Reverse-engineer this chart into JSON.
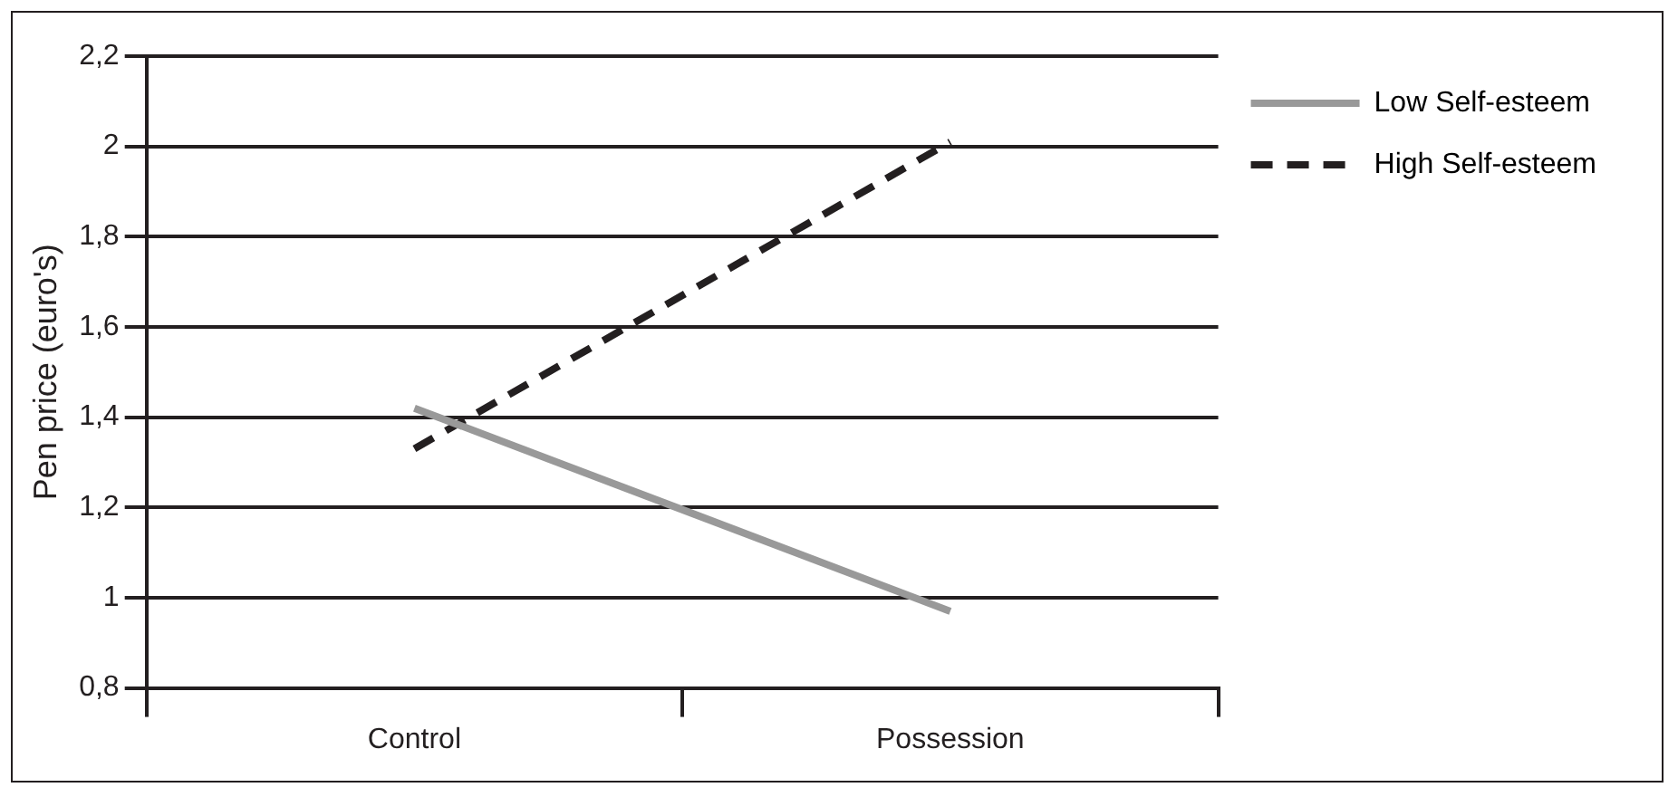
{
  "chart_data": {
    "type": "line",
    "ylabel": "Pen price (euro's)",
    "categories": [
      "Control",
      "Possession"
    ],
    "series": [
      {
        "name": "Low Self-esteem",
        "color": "#999999",
        "values": [
          1.42,
          0.97
        ],
        "line_style": "solid"
      },
      {
        "name": "High Self-esteem",
        "color": "#231f20",
        "values": [
          1.33,
          2.01
        ],
        "line_style": "dashed"
      }
    ],
    "ylim": [
      0.8,
      2.2
    ],
    "yticks": [
      {
        "value": 0.8,
        "label": "0,8"
      },
      {
        "value": 1,
        "label": "1"
      },
      {
        "value": 1.2,
        "label": "1,2"
      },
      {
        "value": 1.4,
        "label": "1,4"
      },
      {
        "value": 1.6,
        "label": "1,6"
      },
      {
        "value": 1.8,
        "label": "1,8"
      },
      {
        "value": 2,
        "label": "2"
      },
      {
        "value": 2.2,
        "label": "2,2"
      }
    ],
    "grid": "y",
    "legend": "top right",
    "marker": "none"
  }
}
